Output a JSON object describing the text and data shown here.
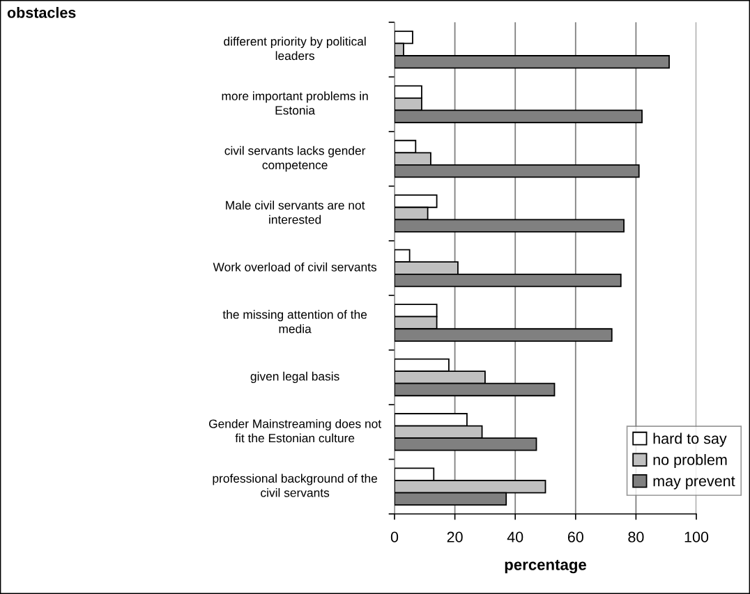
{
  "chart_data": {
    "type": "bar",
    "orientation": "horizontal",
    "categories": [
      "different priority by political\nleaders",
      "more important problems in\nEstonia",
      "civil servants lacks gender\ncompetence",
      "Male civil servants are not\ninterested",
      "Work overload of civil servants",
      "the missing attention of the\nmedia",
      "given legal basis",
      "Gender Mainstreaming does not\nfit the Estonian culture",
      "professional background of the\ncivil servants"
    ],
    "series": [
      {
        "name": "hard to say",
        "color": "#ffffff",
        "values": [
          6,
          9,
          7,
          14,
          5,
          14,
          18,
          24,
          13
        ]
      },
      {
        "name": "no problem",
        "color": "#c0c0c0",
        "values": [
          3,
          9,
          12,
          11,
          21,
          14,
          30,
          29,
          50
        ]
      },
      {
        "name": "may prevent",
        "color": "#808080",
        "values": [
          91,
          82,
          81,
          76,
          75,
          72,
          53,
          47,
          37
        ]
      }
    ],
    "xlabel": "percentage",
    "annotations": [
      "obstacles"
    ],
    "xlim": [
      0,
      100
    ],
    "xticks": [
      0,
      20,
      40,
      60,
      80,
      100
    ],
    "grid": "x",
    "legend": "bottom right"
  }
}
